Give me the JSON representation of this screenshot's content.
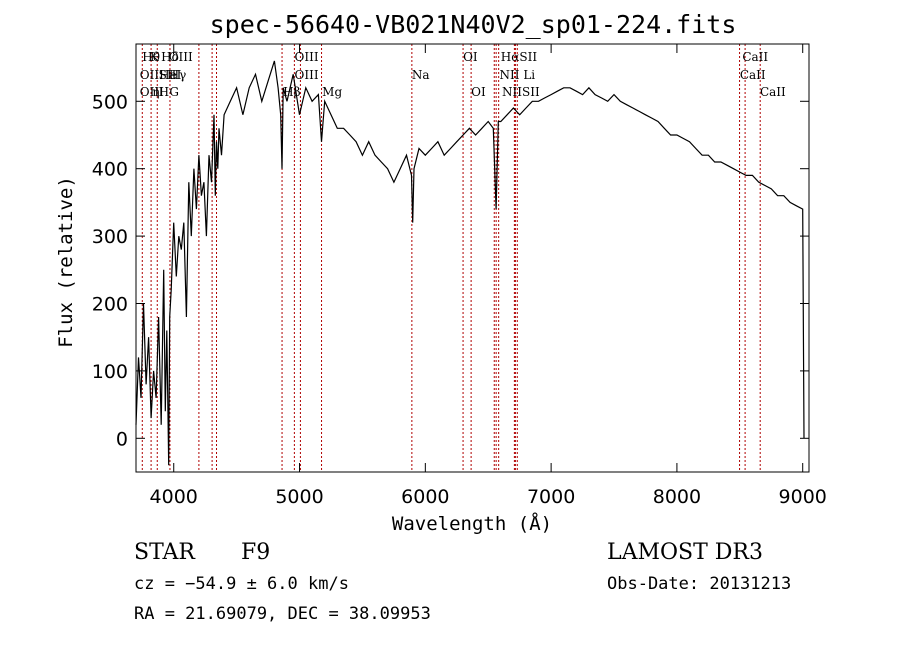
{
  "chart_data": {
    "type": "line",
    "title": "spec-56640-VB021N40V2_sp01-224.fits",
    "xlabel": "Wavelength (Å)",
    "ylabel": "Flux (relative)",
    "xlim": [
      3700,
      9050
    ],
    "ylim": [
      -50,
      585
    ],
    "xticks": [
      4000,
      5000,
      6000,
      7000,
      8000,
      9000
    ],
    "yticks": [
      0,
      100,
      200,
      300,
      400,
      500
    ],
    "xtick_labels": [
      "4000",
      "5000",
      "6000",
      "7000",
      "8000",
      "9000"
    ],
    "ytick_labels": [
      "0",
      "100",
      "200",
      "300",
      "400",
      "500"
    ],
    "series": [
      {
        "name": "flux",
        "x": [
          3700,
          3720,
          3740,
          3760,
          3780,
          3800,
          3820,
          3840,
          3860,
          3880,
          3900,
          3920,
          3933,
          3945,
          3960,
          3968,
          3980,
          4000,
          4020,
          4040,
          4060,
          4080,
          4101,
          4120,
          4140,
          4160,
          4180,
          4200,
          4220,
          4240,
          4260,
          4280,
          4300,
          4320,
          4330,
          4340,
          4350,
          4360,
          4380,
          4400,
          4450,
          4500,
          4550,
          4600,
          4650,
          4700,
          4750,
          4800,
          4830,
          4850,
          4861,
          4870,
          4900,
          4950,
          5000,
          5050,
          5100,
          5150,
          5175,
          5200,
          5250,
          5300,
          5350,
          5400,
          5450,
          5500,
          5550,
          5600,
          5650,
          5700,
          5750,
          5800,
          5850,
          5890,
          5900,
          5910,
          5950,
          6000,
          6050,
          6100,
          6150,
          6200,
          6250,
          6300,
          6350,
          6400,
          6450,
          6500,
          6540,
          6563,
          6580,
          6600,
          6650,
          6700,
          6750,
          6800,
          6850,
          6900,
          6950,
          7000,
          7050,
          7100,
          7150,
          7200,
          7250,
          7300,
          7350,
          7400,
          7450,
          7500,
          7550,
          7600,
          7650,
          7700,
          7750,
          7800,
          7850,
          7900,
          7950,
          8000,
          8050,
          8100,
          8150,
          8200,
          8250,
          8300,
          8350,
          8400,
          8450,
          8500,
          8550,
          8600,
          8650,
          8700,
          8750,
          8800,
          8850,
          8900,
          8950,
          9000,
          9010
        ],
        "y": [
          20,
          120,
          60,
          200,
          80,
          150,
          30,
          100,
          60,
          180,
          20,
          250,
          40,
          160,
          -40,
          180,
          220,
          320,
          240,
          300,
          280,
          320,
          180,
          380,
          300,
          400,
          340,
          420,
          360,
          380,
          300,
          420,
          380,
          480,
          360,
          440,
          400,
          460,
          420,
          480,
          500,
          520,
          480,
          520,
          540,
          500,
          530,
          560,
          520,
          480,
          400,
          520,
          500,
          540,
          480,
          520,
          500,
          510,
          440,
          500,
          480,
          460,
          460,
          450,
          440,
          420,
          440,
          420,
          410,
          400,
          380,
          400,
          420,
          390,
          320,
          400,
          430,
          420,
          430,
          440,
          420,
          430,
          440,
          450,
          460,
          450,
          460,
          470,
          460,
          340,
          470,
          470,
          480,
          490,
          480,
          490,
          500,
          500,
          505,
          510,
          515,
          520,
          520,
          515,
          510,
          520,
          510,
          505,
          500,
          510,
          500,
          495,
          490,
          485,
          480,
          475,
          470,
          460,
          450,
          450,
          445,
          440,
          430,
          420,
          420,
          410,
          410,
          405,
          400,
          395,
          390,
          390,
          380,
          375,
          370,
          360,
          360,
          350,
          345,
          340,
          0
        ]
      }
    ],
    "lines": [
      {
        "x": 3750,
        "label": "Hθ"
      },
      {
        "x": 3820,
        "label": "K"
      },
      {
        "x": 3869,
        "label": "Hδ"
      },
      {
        "x": 3970,
        "label": "GIII"
      },
      {
        "x": 4200,
        "label": "H"
      },
      {
        "x": 4305,
        "label": "G"
      },
      {
        "x": 4340,
        "label": "Hγ"
      },
      {
        "x": 4861,
        "label": "Hβ"
      },
      {
        "x": 4959,
        "label": "OIII"
      },
      {
        "x": 5007,
        "label": "OIII"
      },
      {
        "x": 5175,
        "label": "Mg"
      },
      {
        "x": 5893,
        "label": "Na"
      },
      {
        "x": 6300,
        "label": "OI"
      },
      {
        "x": 6364,
        "label": "OI"
      },
      {
        "x": 6548,
        "label": "NII"
      },
      {
        "x": 6563,
        "label": "Hα"
      },
      {
        "x": 6583,
        "label": "NII"
      },
      {
        "x": 6708,
        "label": "Li"
      },
      {
        "x": 6716,
        "label": "SII"
      },
      {
        "x": 6731,
        "label": "SII"
      },
      {
        "x": 8498,
        "label": "CaII"
      },
      {
        "x": 8542,
        "label": "CaII"
      },
      {
        "x": 8662,
        "label": "CaII"
      }
    ],
    "label_rows": [
      {
        "x": 3750,
        "row": 0,
        "text": "Hθ"
      },
      {
        "x": 3810,
        "row": 0,
        "text": "K"
      },
      {
        "x": 3900,
        "row": 0,
        "text": "Hδ"
      },
      {
        "x": 3960,
        "row": 0,
        "text": "OIII"
      },
      {
        "x": 3730,
        "row": 1,
        "text": "OIIHeI"
      },
      {
        "x": 3880,
        "row": 1,
        "text": "SII"
      },
      {
        "x": 3960,
        "row": 1,
        "text": "Hγ"
      },
      {
        "x": 3730,
        "row": 2,
        "text": "OIII"
      },
      {
        "x": 3830,
        "row": 2,
        "text": "η"
      },
      {
        "x": 3880,
        "row": 2,
        "text": "H"
      },
      {
        "x": 3965,
        "row": 2,
        "text": "G"
      },
      {
        "x": 4960,
        "row": 0,
        "text": "OIII"
      },
      {
        "x": 4960,
        "row": 1,
        "text": "OIII"
      },
      {
        "x": 4870,
        "row": 2,
        "text": "Hβ"
      },
      {
        "x": 5180,
        "row": 2,
        "text": "Mg"
      },
      {
        "x": 5893,
        "row": 1,
        "text": "Na"
      },
      {
        "x": 6300,
        "row": 0,
        "text": "OI"
      },
      {
        "x": 6364,
        "row": 2,
        "text": "OI"
      },
      {
        "x": 6600,
        "row": 0,
        "text": "HαSII"
      },
      {
        "x": 6590,
        "row": 1,
        "text": "NII Li"
      },
      {
        "x": 6610,
        "row": 2,
        "text": "NIISII"
      },
      {
        "x": 8520,
        "row": 0,
        "text": "CaII"
      },
      {
        "x": 8500,
        "row": 1,
        "text": "CaII"
      },
      {
        "x": 8660,
        "row": 2,
        "text": "CaII"
      }
    ]
  },
  "info": {
    "object_class": "STAR",
    "subclass": "F9",
    "survey": "LAMOST DR3",
    "cz": "cz = −54.9 ± 6.0 km/s",
    "obs_date": "Obs-Date: 20131213",
    "coords": "RA =  21.69079, DEC =  38.09953"
  }
}
